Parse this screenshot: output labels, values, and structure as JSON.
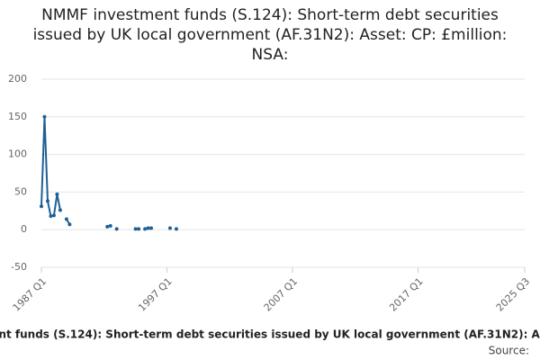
{
  "chart_data": {
    "type": "line",
    "title": "NMMF investment funds (S.124): Short-term debt securities issued by UK local government (AF.31N2): Asset: CP: £million: NSA:",
    "source_label": "Source:",
    "x": [
      "1987 Q1",
      "1987 Q2",
      "1987 Q3",
      "1987 Q4",
      "1988 Q1",
      "1988 Q2",
      "1988 Q3",
      "1988 Q4",
      "1989 Q1",
      "1989 Q2",
      "1989 Q3",
      "1989 Q4",
      "1990 Q1",
      "1990 Q2",
      "1990 Q3",
      "1990 Q4",
      "1991 Q1",
      "1991 Q2",
      "1991 Q3",
      "1991 Q4",
      "1992 Q1",
      "1992 Q2",
      "1992 Q3",
      "1992 Q4",
      "1993 Q1",
      "1993 Q2",
      "1993 Q3",
      "1993 Q4",
      "1994 Q1",
      "1994 Q2",
      "1994 Q3",
      "1994 Q4",
      "1995 Q1",
      "1995 Q2",
      "1995 Q3",
      "1995 Q4",
      "1996 Q1",
      "1996 Q2",
      "1996 Q3",
      "1996 Q4",
      "1997 Q1",
      "1997 Q2",
      "1997 Q3",
      "1997 Q4"
    ],
    "series": [
      {
        "color": "#206095",
        "values": [
          31,
          150,
          38,
          18,
          19,
          47,
          26,
          null,
          14,
          7,
          null,
          null,
          null,
          null,
          null,
          null,
          null,
          null,
          null,
          null,
          null,
          4,
          5,
          null,
          1,
          null,
          null,
          null,
          null,
          null,
          1,
          1,
          null,
          1,
          2,
          2,
          null,
          null,
          null,
          null,
          null,
          2,
          null,
          1
        ]
      }
    ],
    "xlim": [
      "1987 Q1",
      "2025 Q3"
    ],
    "xticks": [
      "1987 Q1",
      "1997 Q1",
      "2007 Q1",
      "2017 Q1",
      "2025 Q3"
    ],
    "ylim": [
      -50,
      200
    ],
    "yticks": [
      -50,
      0,
      50,
      100,
      150,
      200
    ],
    "grid": true
  }
}
